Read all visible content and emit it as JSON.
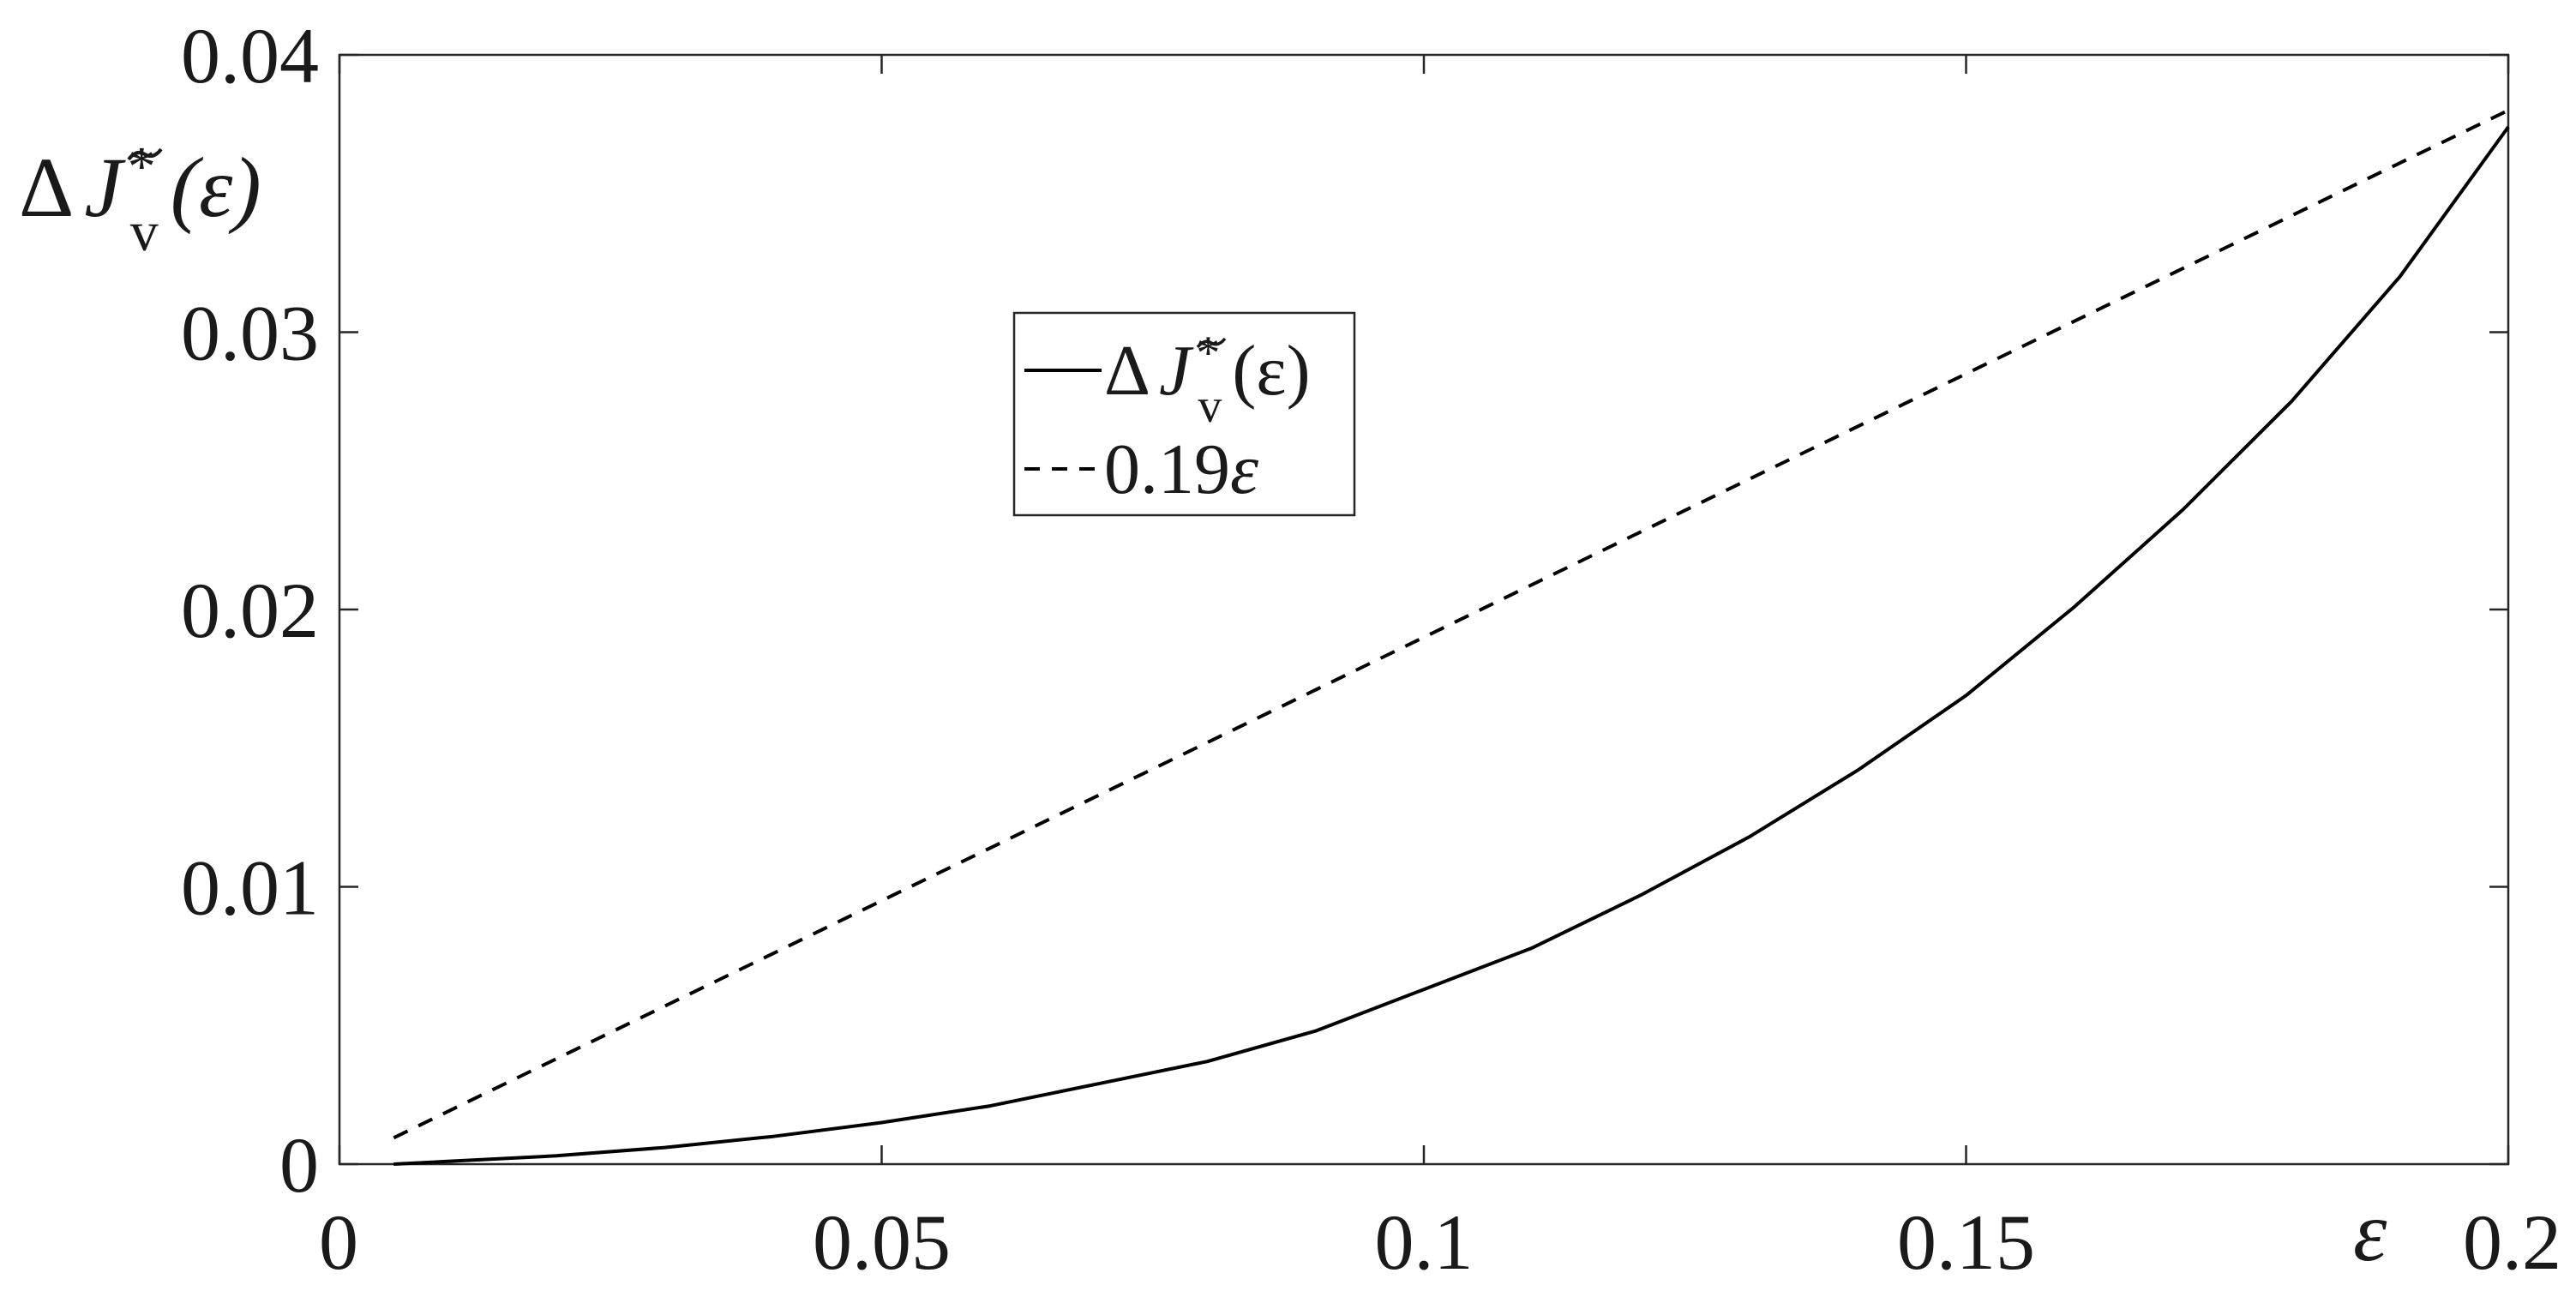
{
  "chart_data": {
    "type": "line",
    "x_ticks": [
      "0",
      "0.05",
      "0.1",
      "0.15",
      "0.2"
    ],
    "y_ticks": [
      "0",
      "0.01",
      "0.02",
      "0.03",
      "0.04"
    ],
    "xlim": [
      0,
      0.2
    ],
    "ylim": [
      0,
      0.04
    ],
    "xlabel": "ε",
    "ylabel": {
      "prefix": "Δ",
      "symbol": "J",
      "superscript": "*",
      "subscript": "v",
      "argument": "(ε)"
    },
    "grid": false,
    "legend_placement": "upper-center",
    "series": [
      {
        "name": "ΔJ̃*v(ε)",
        "legend": {
          "prefix": "Δ",
          "symbol": "J",
          "superscript": "*",
          "subscript": "v",
          "argument": "(ε)"
        },
        "style": "solid",
        "x": [
          0.005,
          0.01,
          0.02,
          0.03,
          0.04,
          0.05,
          0.06,
          0.07,
          0.08,
          0.09,
          0.1,
          0.11,
          0.12,
          0.13,
          0.14,
          0.15,
          0.16,
          0.17,
          0.18,
          0.19,
          0.2
        ],
        "y": [
          0.0,
          0.0001,
          0.0003,
          0.0006,
          0.001,
          0.0015,
          0.0021,
          0.0029,
          0.0037,
          0.0048,
          0.0063,
          0.0078,
          0.0097,
          0.0118,
          0.0142,
          0.0169,
          0.0201,
          0.0236,
          0.0275,
          0.032,
          0.0374
        ]
      },
      {
        "name": "0.19ε",
        "legend": {
          "text": "0.19",
          "symbol": "ε"
        },
        "style": "dashed",
        "x": [
          0.005,
          0.2
        ],
        "y": [
          0.00095,
          0.038
        ]
      }
    ]
  }
}
